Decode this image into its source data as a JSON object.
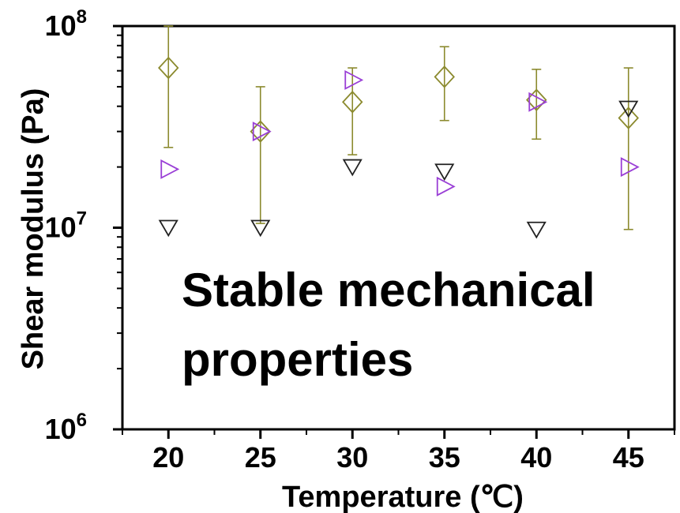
{
  "chart_data": {
    "type": "scatter",
    "title": "",
    "xlabel": "Temperature (℃)",
    "ylabel": "Shear modulus (Pa)",
    "yscale": "log",
    "xlim": [
      17.5,
      47.5
    ],
    "ylim": [
      1000000,
      100000000
    ],
    "grid": false,
    "x_ticks": [
      20,
      25,
      30,
      35,
      40,
      45
    ],
    "x_tick_labels": [
      "20",
      "25",
      "30",
      "35",
      "40",
      "45"
    ],
    "y_ticks": [
      {
        "value": 1000000,
        "base": "10",
        "exp": "6"
      },
      {
        "value": 10000000,
        "base": "10",
        "exp": "7"
      },
      {
        "value": 100000000,
        "base": "10",
        "exp": "8"
      }
    ],
    "series": [
      {
        "marker": "diamond",
        "color": "#8b8a2e",
        "x": [
          20,
          25,
          30,
          35,
          40,
          45
        ],
        "y": [
          62000000,
          30000000,
          42000000,
          56000000,
          43000000,
          35000000
        ],
        "err_low": [
          25000000,
          10500000,
          23000000,
          34000000,
          27500000,
          9800000
        ],
        "err_high": [
          100000000,
          50000000,
          62000000,
          79000000,
          61000000,
          62000000
        ]
      },
      {
        "marker": "triangle-right",
        "color": "#9a3fd6",
        "x": [
          20,
          25,
          30,
          35,
          40,
          45
        ],
        "y": [
          19500000,
          30000000,
          54000000,
          16000000,
          42000000,
          20000000
        ]
      },
      {
        "marker": "triangle-down",
        "color": "#222222",
        "x": [
          20,
          25,
          30,
          35,
          40,
          45
        ],
        "y": [
          10000000,
          10000000,
          20000000,
          19000000,
          9800000,
          39000000
        ]
      }
    ],
    "annotation": {
      "lines": [
        "Stable mechanical",
        "properties"
      ]
    }
  }
}
